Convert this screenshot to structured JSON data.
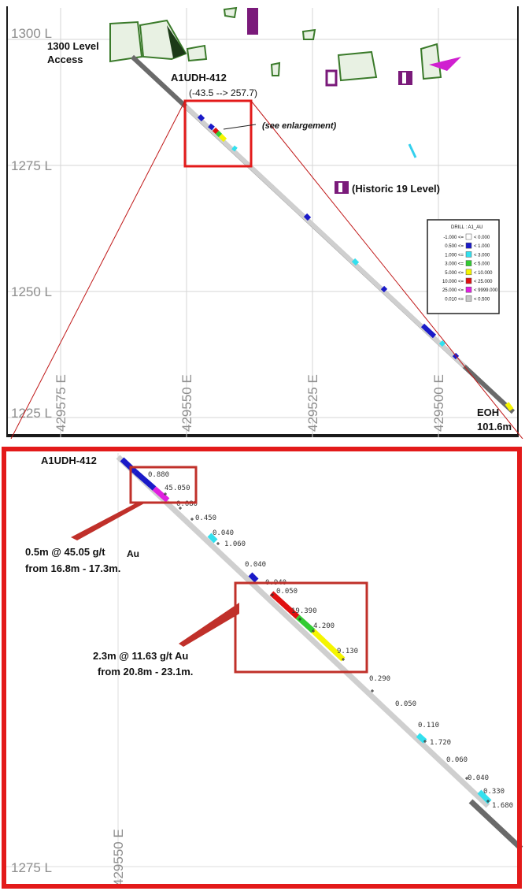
{
  "top": {
    "levels": [
      "1300 L",
      "1275 L",
      "1250 L",
      "1225 L"
    ],
    "eastings": [
      "429575 E",
      "429550 E",
      "429525 E",
      "429500 E"
    ],
    "labels": {
      "access": [
        "1300 Level",
        "Access"
      ],
      "hole": "A1UDH-412",
      "hole_orient": "(-43.5 --> 257.7)",
      "enlarge": "(see enlargement)",
      "historic": "(Historic 19 Level)",
      "eoh": [
        "EOH",
        "101.6m"
      ]
    },
    "legend": {
      "title": "DRILL : A1_AU",
      "rows": [
        {
          "lo": "-1.000 <=",
          "hi": "< 0.000",
          "color": "#ffffff"
        },
        {
          "lo": "0.500 <=",
          "hi": "< 1.000",
          "color": "#1a1ac8"
        },
        {
          "lo": "1.000 <=",
          "hi": "< 3.000",
          "color": "#33e0ee"
        },
        {
          "lo": "3.000 <=",
          "hi": "< 5.000",
          "color": "#33cc33"
        },
        {
          "lo": "5.000 <=",
          "hi": "< 10.000",
          "color": "#f5f500"
        },
        {
          "lo": "10.000 <=",
          "hi": "< 25.000",
          "color": "#e01010"
        },
        {
          "lo": "25.000 <=",
          "hi": "< 9999.000",
          "color": "#e020e0"
        },
        {
          "lo": "0.010 <=",
          "hi": "< 0.500",
          "color": "#c8c8c8"
        }
      ]
    }
  },
  "bottom": {
    "level": "1275 L",
    "easting": "429550 E",
    "hole": "A1UDH-412",
    "callout1": [
      "0.5m @ 45.05 g/t",
      "Au",
      "from 16.8m - 17.3m."
    ],
    "callout2": [
      "2.3m @ 11.63 g/t Au",
      "from 20.8m - 23.1m."
    ],
    "assays": [
      "0.880",
      "45.050",
      "0.080",
      "0.450",
      "0.040",
      "1.060",
      "0.040",
      "0.940",
      "0.050",
      "19.390",
      "4.200",
      "9.130",
      "0.290",
      "0.050",
      "0.110",
      "1.720",
      "0.060",
      "0.040",
      "0.330",
      "1.680"
    ]
  }
}
